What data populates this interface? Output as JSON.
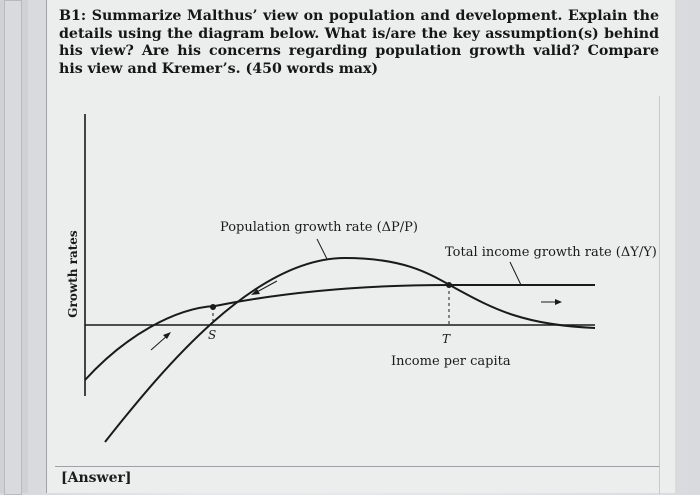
{
  "question": {
    "text": "B1: Summarize Malthus’ view on population and development. Explain the details using the diagram below. What is/are the key assumption(s) behind his view? Are his concerns regarding population growth valid? Compare his view and Kremer’s. (450 words max)"
  },
  "diagram": {
    "y_axis_label": "Growth rates",
    "x_axis_label": "Income per capita",
    "population_curve_label": "Population growth rate (ΔP/P)",
    "income_curve_label": "Total income growth rate (ΔY/Y)",
    "point_s_label": "S",
    "point_t_label": "T"
  },
  "answer": {
    "label": "[Answer]"
  }
}
